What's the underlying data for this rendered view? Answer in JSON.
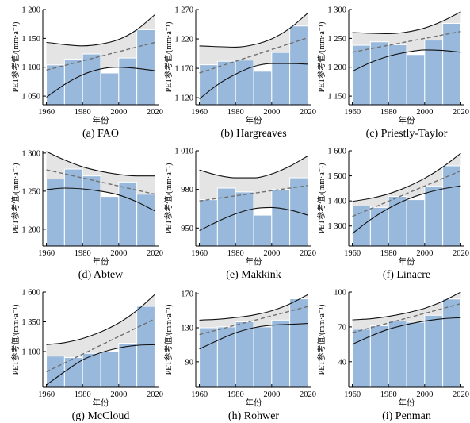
{
  "colors": {
    "bar": "#99b9dc",
    "band": "#e4e4e4",
    "bound": "#111111",
    "trend": "#707070",
    "axis": "#000000"
  },
  "chart_data": [
    {
      "type": "bar",
      "caption": "(a) FAO",
      "xlabel": "年份",
      "ylabel": "PET参考值/(mm·a⁻¹)",
      "xticks": [
        "1960",
        "1980",
        "2000",
        "2020"
      ],
      "yticks": [
        {
          "value": 1050,
          "label": "1 050"
        },
        {
          "value": 1100,
          "label": "1 100"
        },
        {
          "value": 1150,
          "label": "1 150"
        },
        {
          "value": 1200,
          "label": "1 200"
        }
      ],
      "xlim": [
        1958,
        2022
      ],
      "ylim": [
        1035,
        1200
      ],
      "bars": [
        {
          "x0": 1960,
          "x1": 1970,
          "value": 1104
        },
        {
          "x0": 1970,
          "x1": 1980,
          "value": 1114
        },
        {
          "x0": 1980,
          "x1": 1990,
          "value": 1123
        },
        {
          "x0": 1990,
          "x1": 2000,
          "value": 1090
        },
        {
          "x0": 2000,
          "x1": 2010,
          "value": 1116
        },
        {
          "x0": 2010,
          "x1": 2020,
          "value": 1165
        }
      ],
      "upper_bound": [
        [
          1960,
          1143
        ],
        [
          1980,
          1137
        ],
        [
          1990,
          1140
        ],
        [
          2000,
          1148
        ],
        [
          2010,
          1165
        ],
        [
          2020,
          1191
        ]
      ],
      "lower_bound": [
        [
          1960,
          1048
        ],
        [
          1970,
          1070
        ],
        [
          1980,
          1087
        ],
        [
          1990,
          1097
        ],
        [
          2000,
          1100
        ],
        [
          2010,
          1098
        ],
        [
          2020,
          1094
        ]
      ],
      "trend": [
        [
          1960,
          1095
        ],
        [
          2020,
          1143
        ]
      ]
    },
    {
      "type": "bar",
      "caption": "(b) Hargreaves",
      "xlabel": "年份",
      "ylabel": "PET参考值/(mm·a⁻¹)",
      "xticks": [
        "1960",
        "1980",
        "2000",
        "2020"
      ],
      "yticks": [
        {
          "value": 1120,
          "label": "1 120"
        },
        {
          "value": 1170,
          "label": "1 170"
        },
        {
          "value": 1220,
          "label": "1 220"
        },
        {
          "value": 1270,
          "label": "1 270"
        }
      ],
      "xlim": [
        1958,
        2022
      ],
      "ylim": [
        1108,
        1270
      ],
      "bars": [
        {
          "x0": 1960,
          "x1": 1970,
          "value": 1176
        },
        {
          "x0": 1970,
          "x1": 1980,
          "value": 1182
        },
        {
          "x0": 1980,
          "x1": 1990,
          "value": 1184
        },
        {
          "x0": 1990,
          "x1": 2000,
          "value": 1165
        },
        {
          "x0": 2000,
          "x1": 2010,
          "value": 1197
        },
        {
          "x0": 2010,
          "x1": 2020,
          "value": 1242
        }
      ],
      "upper_bound": [
        [
          1960,
          1208
        ],
        [
          1980,
          1206
        ],
        [
          1990,
          1210
        ],
        [
          2000,
          1220
        ],
        [
          2010,
          1238
        ],
        [
          2020,
          1264
        ]
      ],
      "lower_bound": [
        [
          1960,
          1118
        ],
        [
          1970,
          1142
        ],
        [
          1980,
          1160
        ],
        [
          1990,
          1173
        ],
        [
          2000,
          1178
        ],
        [
          2010,
          1178
        ],
        [
          2020,
          1177
        ]
      ],
      "trend": [
        [
          1960,
          1162
        ],
        [
          2020,
          1222
        ]
      ]
    },
    {
      "type": "bar",
      "caption": "(c) Priestly-Taylor",
      "xlabel": "年份",
      "ylabel": "PET参考值/(mm·a⁻¹)",
      "xticks": [
        "1960",
        "1980",
        "2000",
        "2020"
      ],
      "yticks": [
        {
          "value": 1150,
          "label": "1 150"
        },
        {
          "value": 1200,
          "label": "1 200"
        },
        {
          "value": 1250,
          "label": "1 250"
        },
        {
          "value": 1300,
          "label": "1 300"
        }
      ],
      "xlim": [
        1958,
        2022
      ],
      "ylim": [
        1135,
        1300
      ],
      "bars": [
        {
          "x0": 1960,
          "x1": 1970,
          "value": 1238
        },
        {
          "x0": 1970,
          "x1": 1980,
          "value": 1244
        },
        {
          "x0": 1980,
          "x1": 1990,
          "value": 1239
        },
        {
          "x0": 1990,
          "x1": 2000,
          "value": 1222
        },
        {
          "x0": 2000,
          "x1": 2010,
          "value": 1247
        },
        {
          "x0": 2010,
          "x1": 2020,
          "value": 1276
        }
      ],
      "upper_bound": [
        [
          1960,
          1260
        ],
        [
          1980,
          1258
        ],
        [
          1990,
          1261
        ],
        [
          2000,
          1268
        ],
        [
          2010,
          1280
        ],
        [
          2020,
          1296
        ]
      ],
      "lower_bound": [
        [
          1960,
          1193
        ],
        [
          1970,
          1208
        ],
        [
          1980,
          1219
        ],
        [
          1990,
          1226
        ],
        [
          2000,
          1230
        ],
        [
          2010,
          1229
        ],
        [
          2020,
          1226
        ]
      ],
      "trend": [
        [
          1960,
          1226
        ],
        [
          2020,
          1262
        ]
      ]
    },
    {
      "type": "bar",
      "caption": "(d) Abtew",
      "xlabel": "年份",
      "ylabel": "PET参考值/(mm·a⁻¹)",
      "xticks": [
        "1960",
        "1980",
        "2000",
        "2020"
      ],
      "yticks": [
        {
          "value": 1200,
          "label": "1 200"
        },
        {
          "value": 1250,
          "label": "1 250"
        },
        {
          "value": 1300,
          "label": "1 300"
        }
      ],
      "xlim": [
        1958,
        2022
      ],
      "ylim": [
        1178,
        1303
      ],
      "bars": [
        {
          "x0": 1960,
          "x1": 1970,
          "value": 1266
        },
        {
          "x0": 1970,
          "x1": 1980,
          "value": 1279
        },
        {
          "x0": 1980,
          "x1": 1990,
          "value": 1270
        },
        {
          "x0": 1990,
          "x1": 2000,
          "value": 1243
        },
        {
          "x0": 2000,
          "x1": 2010,
          "value": 1262
        },
        {
          "x0": 2010,
          "x1": 2020,
          "value": 1246
        }
      ],
      "upper_bound": [
        [
          1960,
          1302
        ],
        [
          1970,
          1291
        ],
        [
          1980,
          1282
        ],
        [
          1990,
          1276
        ],
        [
          2000,
          1272
        ],
        [
          2010,
          1270
        ],
        [
          2020,
          1270
        ]
      ],
      "lower_bound": [
        [
          1960,
          1252
        ],
        [
          1970,
          1254
        ],
        [
          1980,
          1253
        ],
        [
          1990,
          1250
        ],
        [
          2000,
          1245
        ],
        [
          2010,
          1236
        ],
        [
          2020,
          1224
        ]
      ],
      "trend": [
        [
          1960,
          1278
        ],
        [
          2020,
          1246
        ]
      ]
    },
    {
      "type": "bar",
      "caption": "(e) Makkink",
      "xlabel": "年份",
      "ylabel": "PET参考值/(mm·a⁻¹)",
      "xticks": [
        "1960",
        "1980",
        "2000",
        "2020"
      ],
      "yticks": [
        {
          "value": 950,
          "label": "950"
        },
        {
          "value": 980,
          "label": "980"
        },
        {
          "value": 1010,
          "label": "1 010"
        }
      ],
      "xlim": [
        1958,
        2022
      ],
      "ylim": [
        936,
        1010
      ],
      "bars": [
        {
          "x0": 1960,
          "x1": 1970,
          "value": 972
        },
        {
          "x0": 1970,
          "x1": 1980,
          "value": 981
        },
        {
          "x0": 1980,
          "x1": 1990,
          "value": 978
        },
        {
          "x0": 1990,
          "x1": 2000,
          "value": 960
        },
        {
          "x0": 2000,
          "x1": 2010,
          "value": 980
        },
        {
          "x0": 2010,
          "x1": 2020,
          "value": 989
        }
      ],
      "upper_bound": [
        [
          1960,
          995
        ],
        [
          1970,
          991
        ],
        [
          1980,
          989
        ],
        [
          1990,
          989
        ],
        [
          2000,
          992
        ],
        [
          2010,
          998
        ],
        [
          2020,
          1006
        ]
      ],
      "lower_bound": [
        [
          1960,
          948
        ],
        [
          1970,
          955
        ],
        [
          1980,
          961
        ],
        [
          1990,
          965
        ],
        [
          2000,
          966
        ],
        [
          2010,
          964
        ],
        [
          2020,
          960
        ]
      ],
      "trend": [
        [
          1960,
          971
        ],
        [
          2020,
          983
        ]
      ]
    },
    {
      "type": "bar",
      "caption": "(f) Linacre",
      "xlabel": "年份",
      "ylabel": "PET参考值/(mm·a⁻¹)",
      "xticks": [
        "1960",
        "1980",
        "2000",
        "2020"
      ],
      "yticks": [
        {
          "value": 1300,
          "label": "1 300"
        },
        {
          "value": 1400,
          "label": "1 400"
        },
        {
          "value": 1500,
          "label": "1 500"
        },
        {
          "value": 1600,
          "label": "1 600"
        }
      ],
      "xlim": [
        1958,
        2022
      ],
      "ylim": [
        1220,
        1600
      ],
      "bars": [
        {
          "x0": 1960,
          "x1": 1970,
          "value": 1380
        },
        {
          "x0": 1970,
          "x1": 1980,
          "value": 1374
        },
        {
          "x0": 1980,
          "x1": 1990,
          "value": 1418
        },
        {
          "x0": 1990,
          "x1": 2000,
          "value": 1405
        },
        {
          "x0": 2000,
          "x1": 2010,
          "value": 1458
        },
        {
          "x0": 2010,
          "x1": 2020,
          "value": 1540
        }
      ],
      "upper_bound": [
        [
          1960,
          1398
        ],
        [
          1970,
          1410
        ],
        [
          1980,
          1428
        ],
        [
          1990,
          1455
        ],
        [
          2000,
          1490
        ],
        [
          2010,
          1535
        ],
        [
          2020,
          1590
        ]
      ],
      "lower_bound": [
        [
          1960,
          1270
        ],
        [
          1970,
          1325
        ],
        [
          1980,
          1370
        ],
        [
          1990,
          1405
        ],
        [
          2000,
          1430
        ],
        [
          2010,
          1448
        ],
        [
          2020,
          1460
        ]
      ],
      "trend": [
        [
          1960,
          1338
        ],
        [
          2020,
          1520
        ]
      ]
    },
    {
      "type": "bar",
      "caption": "(g) McCloud",
      "xlabel": "年份",
      "ylabel": "PET参考值/(mm·a⁻¹)",
      "xticks": [
        "1960",
        "1980",
        "2000",
        "2020"
      ],
      "yticks": [
        {
          "value": 1100,
          "label": "1 100"
        },
        {
          "value": 1350,
          "label": "1 350"
        },
        {
          "value": 1600,
          "label": "1 600"
        }
      ],
      "xlim": [
        1958,
        2022
      ],
      "ylim": [
        800,
        1600
      ],
      "bars": [
        {
          "x0": 1960,
          "x1": 1970,
          "value": 1062
        },
        {
          "x0": 1970,
          "x1": 1980,
          "value": 1050
        },
        {
          "x0": 1980,
          "x1": 1990,
          "value": 1085
        },
        {
          "x0": 1990,
          "x1": 2000,
          "value": 1100
        },
        {
          "x0": 2000,
          "x1": 2010,
          "value": 1170
        },
        {
          "x0": 2010,
          "x1": 2020,
          "value": 1480
        }
      ],
      "upper_bound": [
        [
          1960,
          1158
        ],
        [
          1970,
          1175
        ],
        [
          1980,
          1210
        ],
        [
          1990,
          1265
        ],
        [
          2000,
          1340
        ],
        [
          2010,
          1445
        ],
        [
          2020,
          1580
        ]
      ],
      "lower_bound": [
        [
          1960,
          820
        ],
        [
          1970,
          930
        ],
        [
          1980,
          1030
        ],
        [
          1990,
          1090
        ],
        [
          2000,
          1130
        ],
        [
          2010,
          1152
        ],
        [
          2020,
          1158
        ]
      ],
      "trend": [
        [
          1960,
          930
        ],
        [
          2020,
          1375
        ]
      ]
    },
    {
      "type": "bar",
      "caption": "(h) Rohwer",
      "xlabel": "年份",
      "ylabel": "PET参考值/(mm·a⁻¹)",
      "xticks": [
        "1960",
        "1980",
        "2000",
        "2020"
      ],
      "yticks": [
        {
          "value": 90,
          "label": "90"
        },
        {
          "value": 130,
          "label": "130"
        },
        {
          "value": 170,
          "label": "170"
        }
      ],
      "xlim": [
        1958,
        2022
      ],
      "ylim": [
        60,
        172
      ],
      "bars": [
        {
          "x0": 1960,
          "x1": 1970,
          "value": 130
        },
        {
          "x0": 1970,
          "x1": 1980,
          "value": 131
        },
        {
          "x0": 1980,
          "x1": 1990,
          "value": 137
        },
        {
          "x0": 1990,
          "x1": 2000,
          "value": 131
        },
        {
          "x0": 2000,
          "x1": 2010,
          "value": 139
        },
        {
          "x0": 2010,
          "x1": 2020,
          "value": 164
        }
      ],
      "upper_bound": [
        [
          1960,
          139
        ],
        [
          1970,
          140
        ],
        [
          1980,
          142
        ],
        [
          1990,
          145
        ],
        [
          2000,
          150
        ],
        [
          2010,
          158
        ],
        [
          2020,
          169
        ]
      ],
      "lower_bound": [
        [
          1960,
          105
        ],
        [
          1970,
          115
        ],
        [
          1980,
          124
        ],
        [
          1990,
          130
        ],
        [
          2000,
          133
        ],
        [
          2010,
          134
        ],
        [
          2020,
          135
        ]
      ],
      "trend": [
        [
          1960,
          122
        ],
        [
          2020,
          155
        ]
      ]
    },
    {
      "type": "bar",
      "caption": "(i) Penman",
      "xlabel": "年份",
      "ylabel": "PET参考值/(mm·a⁻¹)",
      "xticks": [
        "1960",
        "1980",
        "2000",
        "2020"
      ],
      "yticks": [
        {
          "value": 40,
          "label": "40"
        },
        {
          "value": 70,
          "label": "70"
        },
        {
          "value": 100,
          "label": "100"
        }
      ],
      "xlim": [
        1958,
        2022
      ],
      "ylim": [
        18,
        100
      ],
      "bars": [
        {
          "x0": 1960,
          "x1": 1970,
          "value": 68
        },
        {
          "x0": 1970,
          "x1": 1980,
          "value": 71
        },
        {
          "x0": 1980,
          "x1": 1990,
          "value": 75
        },
        {
          "x0": 1990,
          "x1": 2000,
          "value": 74
        },
        {
          "x0": 2000,
          "x1": 2010,
          "value": 80
        },
        {
          "x0": 2010,
          "x1": 2020,
          "value": 94
        }
      ],
      "upper_bound": [
        [
          1960,
          76
        ],
        [
          1970,
          77
        ],
        [
          1980,
          79
        ],
        [
          1990,
          82
        ],
        [
          2000,
          86
        ],
        [
          2010,
          92
        ],
        [
          2020,
          100
        ]
      ],
      "lower_bound": [
        [
          1960,
          55
        ],
        [
          1970,
          62
        ],
        [
          1980,
          68
        ],
        [
          1990,
          72
        ],
        [
          2000,
          75
        ],
        [
          2010,
          77
        ],
        [
          2020,
          78
        ]
      ],
      "trend": [
        [
          1960,
          65
        ],
        [
          2020,
          90
        ]
      ]
    }
  ]
}
